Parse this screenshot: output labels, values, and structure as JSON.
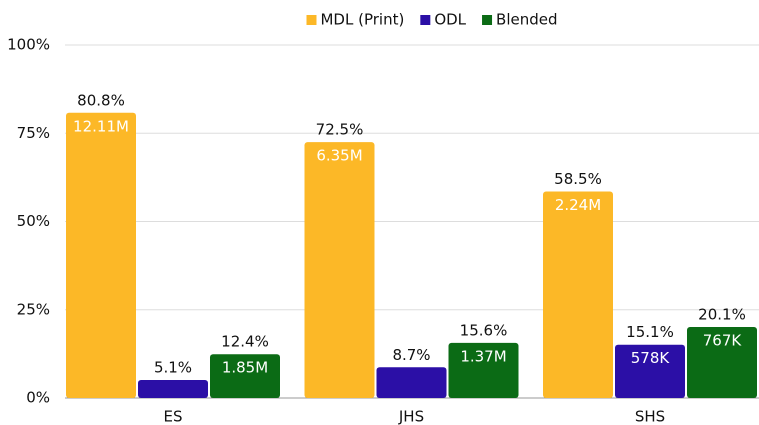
{
  "chart_data": {
    "type": "bar",
    "categories": [
      "ES",
      "JHS",
      "SHS"
    ],
    "series": [
      {
        "name": "MDL (Print)",
        "color": "#fcb827",
        "values": [
          80.8,
          72.5,
          58.5
        ],
        "value_labels": [
          "80.8%",
          "72.5%",
          "58.5%"
        ],
        "count_labels": [
          "12.11M",
          "6.35M",
          "2.24M"
        ]
      },
      {
        "name": "ODL",
        "color": "#2b0fa6",
        "values": [
          5.1,
          8.7,
          15.1
        ],
        "value_labels": [
          "5.1%",
          "8.7%",
          "15.1%"
        ],
        "count_labels": [
          null,
          null,
          "578K"
        ]
      },
      {
        "name": "Blended",
        "color": "#0b6b15",
        "values": [
          12.4,
          15.6,
          20.1
        ],
        "value_labels": [
          "12.4%",
          "15.6%",
          "20.1%"
        ],
        "count_labels": [
          "1.85M",
          "1.37M",
          "767K"
        ]
      }
    ],
    "ylim": [
      0,
      100
    ],
    "yticks": [
      {
        "value": 0,
        "label": "0%"
      },
      {
        "value": 25,
        "label": "25%"
      },
      {
        "value": 50,
        "label": "50%"
      },
      {
        "value": 75,
        "label": "75%"
      },
      {
        "value": 100,
        "label": "100%"
      }
    ],
    "grid": true,
    "legend": "top"
  }
}
